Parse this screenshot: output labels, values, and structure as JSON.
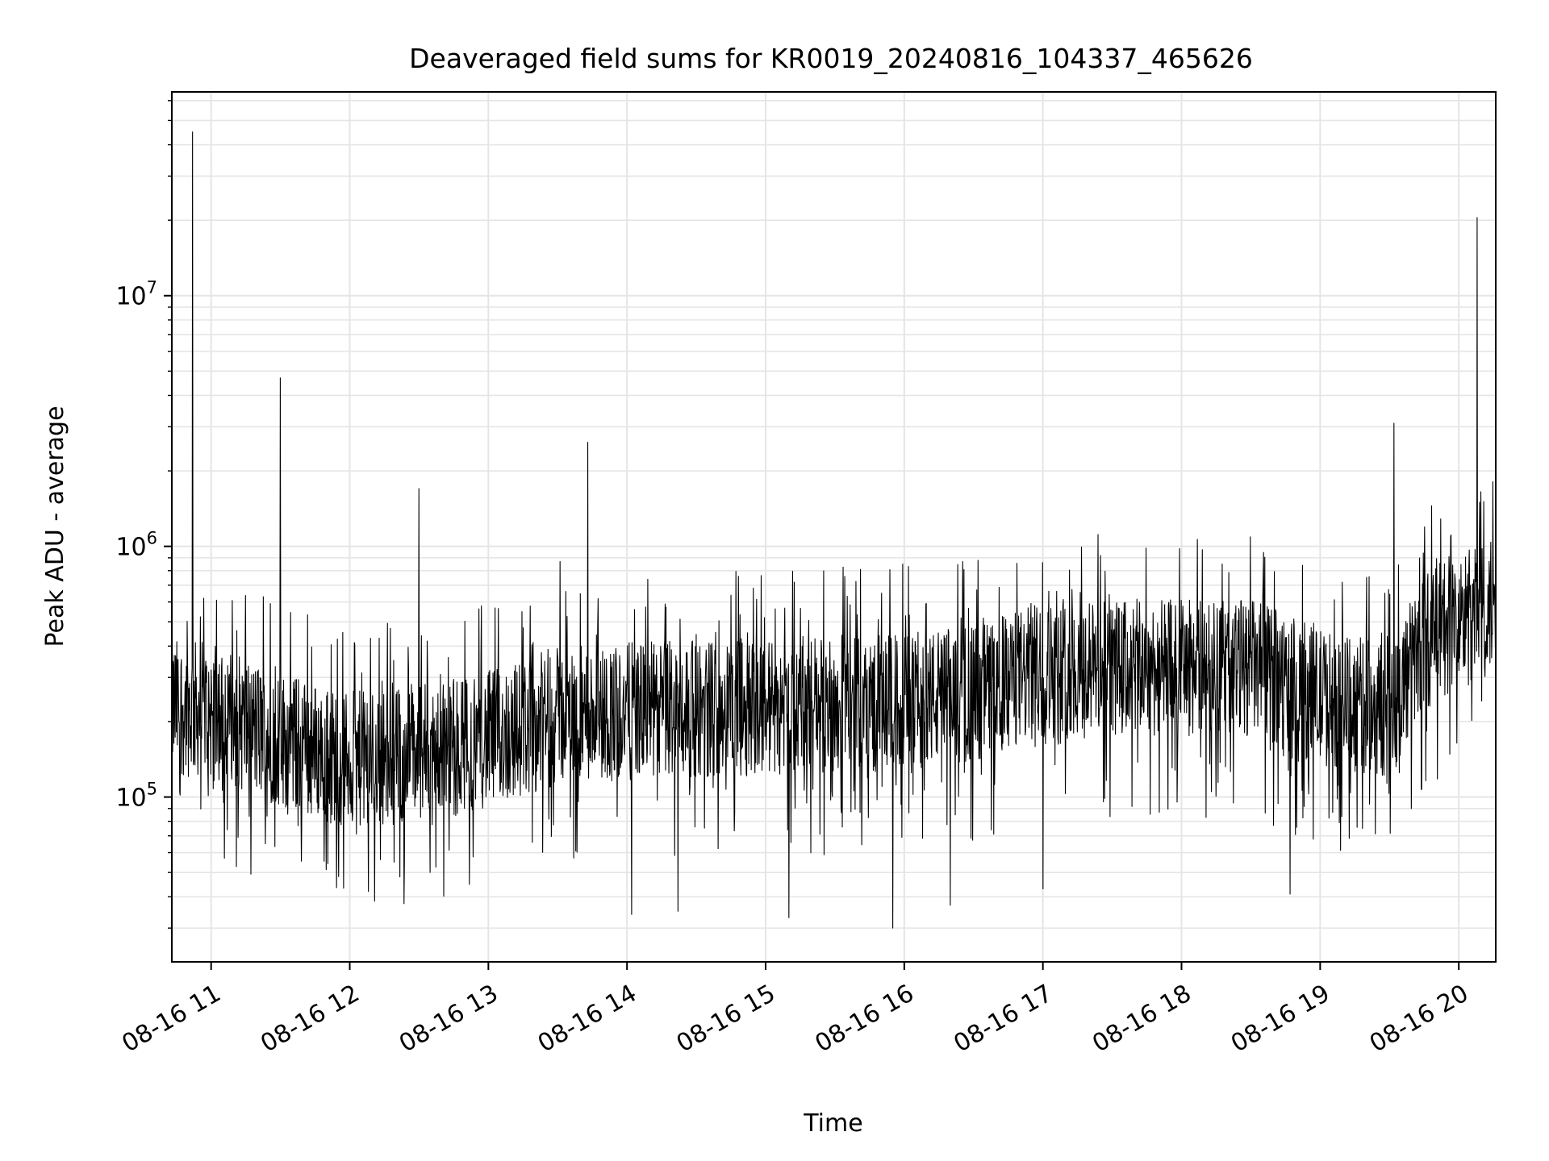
{
  "chart_data": {
    "type": "line",
    "title": "Deaveraged field sums for KR0019_20240816_104337_465626",
    "xlabel": "Time",
    "ylabel": "Peak ADU - average",
    "x_tick_labels": [
      "08-16 11",
      "08-16 12",
      "08-16 13",
      "08-16 14",
      "08-16 15",
      "08-16 16",
      "08-16 17",
      "08-16 18",
      "08-16 19",
      "08-16 20"
    ],
    "x_ticks": [
      "2024-08-16 11:00",
      "2024-08-16 12:00",
      "2024-08-16 13:00",
      "2024-08-16 14:00",
      "2024-08-16 15:00",
      "2024-08-16 16:00",
      "2024-08-16 17:00",
      "2024-08-16 18:00",
      "2024-08-16 19:00",
      "2024-08-16 20:00"
    ],
    "xlim": [
      "2024-08-16 10:43",
      "2024-08-16 20:16"
    ],
    "y_scale": "log",
    "ylim": [
      22000,
      65000000
    ],
    "y_ticks": [
      {
        "value": 100000,
        "base": "10",
        "exp": "5"
      },
      {
        "value": 1000000,
        "base": "10",
        "exp": "6"
      },
      {
        "value": 10000000,
        "base": "10",
        "exp": "7"
      }
    ],
    "grid": true,
    "line_color": "#000000",
    "grid_color": "#e5e5e5",
    "series": [
      {
        "values_note": "",
        "baseline": [
          {
            "x": "2024-08-16 10:43",
            "y": 230000
          },
          {
            "x": "2024-08-16 11:00",
            "y": 220000
          },
          {
            "x": "2024-08-16 11:30",
            "y": 170000
          },
          {
            "x": "2024-08-16 12:00",
            "y": 140000
          },
          {
            "x": "2024-08-16 12:30",
            "y": 150000
          },
          {
            "x": "2024-08-16 13:00",
            "y": 170000
          },
          {
            "x": "2024-08-16 13:30",
            "y": 210000
          },
          {
            "x": "2024-08-16 14:00",
            "y": 220000
          },
          {
            "x": "2024-08-16 15:00",
            "y": 230000
          },
          {
            "x": "2024-08-16 16:00",
            "y": 240000
          },
          {
            "x": "2024-08-16 16:30",
            "y": 260000
          },
          {
            "x": "2024-08-16 17:00",
            "y": 320000
          },
          {
            "x": "2024-08-16 18:00",
            "y": 330000
          },
          {
            "x": "2024-08-16 18:30",
            "y": 330000
          },
          {
            "x": "2024-08-16 19:00",
            "y": 250000
          },
          {
            "x": "2024-08-16 19:30",
            "y": 220000
          },
          {
            "x": "2024-08-16 19:45",
            "y": 420000
          },
          {
            "x": "2024-08-16 20:00",
            "y": 500000
          },
          {
            "x": "2024-08-16 20:16",
            "y": 580000
          }
        ],
        "spikes": [
          {
            "x": "2024-08-16 10:52",
            "y": 45000000
          },
          {
            "x": "2024-08-16 11:30",
            "y": 4700000
          },
          {
            "x": "2024-08-16 12:30",
            "y": 1700000
          },
          {
            "x": "2024-08-16 13:43",
            "y": 2600000
          },
          {
            "x": "2024-08-16 13:31",
            "y": 870000
          },
          {
            "x": "2024-08-16 17:25",
            "y": 920000
          },
          {
            "x": "2024-08-16 18:09",
            "y": 970000
          },
          {
            "x": "2024-08-16 19:32",
            "y": 3100000
          },
          {
            "x": "2024-08-16 20:08",
            "y": 20500000
          },
          {
            "x": "2024-08-16 20:09",
            "y": 1500000
          }
        ],
        "dips": [
          {
            "x": "2024-08-16 15:55",
            "y": 30000
          },
          {
            "x": "2024-08-16 15:10",
            "y": 33000
          },
          {
            "x": "2024-08-16 14:02",
            "y": 34000
          },
          {
            "x": "2024-08-16 14:22",
            "y": 35000
          },
          {
            "x": "2024-08-16 16:20",
            "y": 37000
          },
          {
            "x": "2024-08-16 18:47",
            "y": 41000
          },
          {
            "x": "2024-08-16 12:08",
            "y": 42000
          },
          {
            "x": "2024-08-16 17:00",
            "y": 43000
          }
        ]
      }
    ]
  }
}
